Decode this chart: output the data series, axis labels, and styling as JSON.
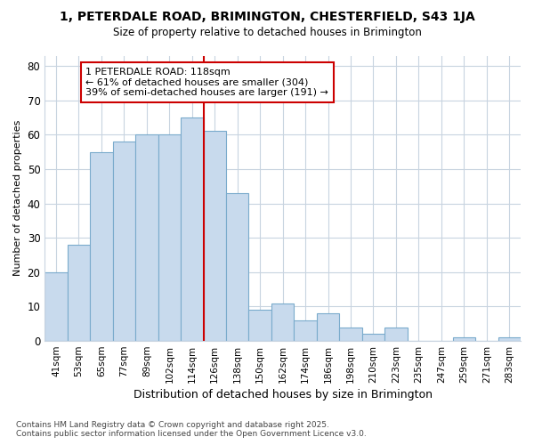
{
  "title1": "1, PETERDALE ROAD, BRIMINGTON, CHESTERFIELD, S43 1JA",
  "title2": "Size of property relative to detached houses in Brimington",
  "xlabel": "Distribution of detached houses by size in Brimington",
  "ylabel": "Number of detached properties",
  "categories": [
    "41sqm",
    "53sqm",
    "65sqm",
    "77sqm",
    "89sqm",
    "102sqm",
    "114sqm",
    "126sqm",
    "138sqm",
    "150sqm",
    "162sqm",
    "174sqm",
    "186sqm",
    "198sqm",
    "210sqm",
    "223sqm",
    "235sqm",
    "247sqm",
    "259sqm",
    "271sqm",
    "283sqm"
  ],
  "values": [
    20,
    28,
    55,
    58,
    60,
    60,
    65,
    61,
    43,
    9,
    11,
    6,
    8,
    4,
    2,
    4,
    0,
    0,
    1,
    0,
    1
  ],
  "bar_color": "#c8daed",
  "bar_edge_color": "#7aabcc",
  "vline_color": "#cc0000",
  "vline_x": 6.5,
  "annotation_label": "1 PETERDALE ROAD: 118sqm",
  "annotation_line1": "← 61% of detached houses are smaller (304)",
  "annotation_line2": "39% of semi-detached houses are larger (191) →",
  "bg_color": "#ffffff",
  "grid_color": "#c8d4e0",
  "footer1": "Contains HM Land Registry data © Crown copyright and database right 2025.",
  "footer2": "Contains public sector information licensed under the Open Government Licence v3.0.",
  "ylim": [
    0,
    83
  ],
  "yticks": [
    0,
    10,
    20,
    30,
    40,
    50,
    60,
    70,
    80
  ]
}
